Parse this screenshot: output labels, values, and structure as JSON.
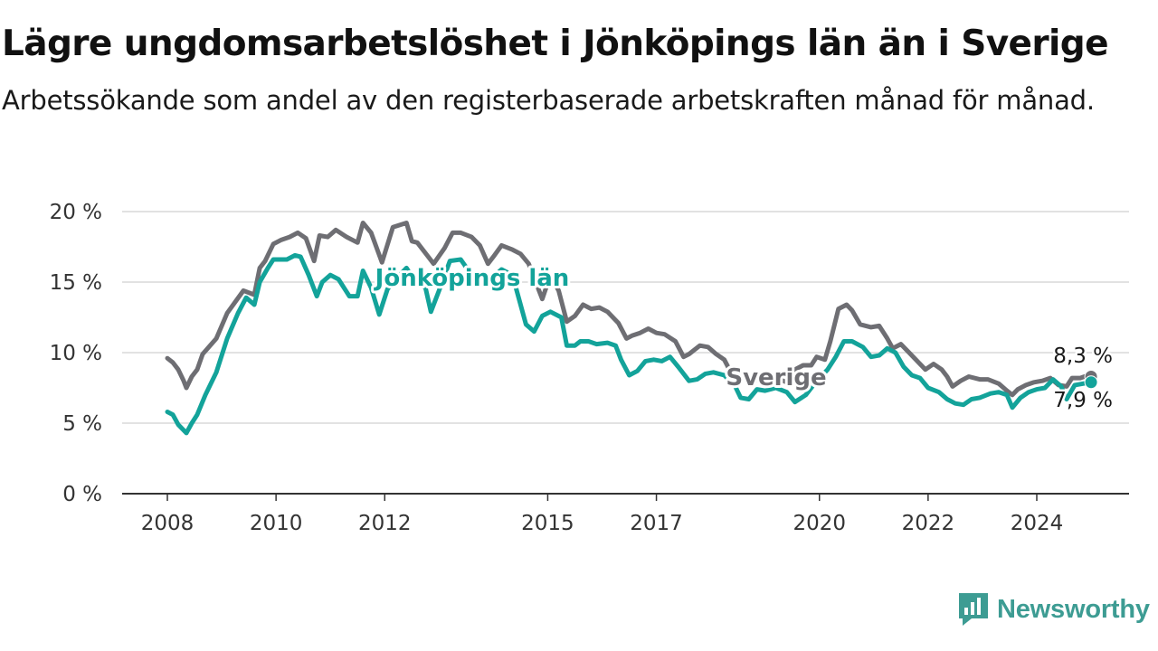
{
  "title": "Lägre ungdomsarbetslöshet i Jönköpings län än i Sverige",
  "subtitle": "Arbetssökande som andel av den registerbaserade arbetskraften månad för månad.",
  "brand": "Newsworthy",
  "colors": {
    "sverige": "#6e6e73",
    "jonkoping": "#13a39a",
    "grid": "#d9d9d9",
    "axis": "#333333",
    "brand": "#3d9c93"
  },
  "chart_data": {
    "type": "line",
    "title": "Lägre ungdomsarbetslöshet i Jönköpings län än i Sverige",
    "subtitle": "Arbetssökande som andel av den registerbaserade arbetskraften månad för månad.",
    "xlabel": "",
    "ylabel": "",
    "x_start": "2008-01",
    "x_end": "2024-09",
    "xlim": [
      2008,
      2025.25
    ],
    "ylim": [
      0,
      20
    ],
    "grid": true,
    "x_ticks": [
      {
        "value": 2008,
        "label": "2008"
      },
      {
        "value": 2010,
        "label": "2010"
      },
      {
        "value": 2012,
        "label": "2012"
      },
      {
        "value": 2015,
        "label": "2015"
      },
      {
        "value": 2017,
        "label": "2017"
      },
      {
        "value": 2020,
        "label": "2020"
      },
      {
        "value": 2022,
        "label": "2022"
      },
      {
        "value": 2024,
        "label": "2024"
      }
    ],
    "y_ticks": [
      {
        "value": 0,
        "label": "0 %"
      },
      {
        "value": 5,
        "label": "5 %"
      },
      {
        "value": 10,
        "label": "10 %"
      },
      {
        "value": 15,
        "label": "15 %"
      },
      {
        "value": 20,
        "label": "20 %"
      }
    ],
    "series": [
      {
        "name": "Sverige",
        "key": "sverige",
        "end_label": "8,3 %",
        "anchors": [
          [
            2008.0,
            9.6
          ],
          [
            2008.1,
            9.3
          ],
          [
            2008.2,
            8.8
          ],
          [
            2008.3,
            8.0
          ],
          [
            2008.35,
            7.5
          ],
          [
            2008.45,
            8.3
          ],
          [
            2008.55,
            8.8
          ],
          [
            2008.65,
            9.9
          ],
          [
            2008.9,
            11.0
          ],
          [
            2009.1,
            12.8
          ],
          [
            2009.4,
            14.4
          ],
          [
            2009.6,
            14.1
          ],
          [
            2009.7,
            16.0
          ],
          [
            2009.8,
            16.5
          ],
          [
            2009.95,
            17.7
          ],
          [
            2010.1,
            18.0
          ],
          [
            2010.25,
            18.2
          ],
          [
            2010.4,
            18.5
          ],
          [
            2010.55,
            18.1
          ],
          [
            2010.7,
            16.5
          ],
          [
            2010.8,
            18.3
          ],
          [
            2010.95,
            18.2
          ],
          [
            2011.1,
            18.7
          ],
          [
            2011.3,
            18.2
          ],
          [
            2011.5,
            17.8
          ],
          [
            2011.6,
            19.2
          ],
          [
            2011.75,
            18.5
          ],
          [
            2011.95,
            16.4
          ],
          [
            2012.15,
            18.9
          ],
          [
            2012.4,
            19.2
          ],
          [
            2012.5,
            17.9
          ],
          [
            2012.6,
            17.8
          ],
          [
            2012.8,
            16.8
          ],
          [
            2012.9,
            16.3
          ],
          [
            2013.1,
            17.4
          ],
          [
            2013.25,
            18.5
          ],
          [
            2013.4,
            18.5
          ],
          [
            2013.6,
            18.2
          ],
          [
            2013.75,
            17.6
          ],
          [
            2013.9,
            16.3
          ],
          [
            2014.0,
            16.8
          ],
          [
            2014.15,
            17.6
          ],
          [
            2014.35,
            17.3
          ],
          [
            2014.5,
            17.0
          ],
          [
            2014.65,
            16.3
          ],
          [
            2014.9,
            13.8
          ],
          [
            2015.05,
            15.5
          ],
          [
            2015.2,
            14.4
          ],
          [
            2015.35,
            12.2
          ],
          [
            2015.5,
            12.6
          ],
          [
            2015.65,
            13.4
          ],
          [
            2015.8,
            13.1
          ],
          [
            2015.95,
            13.2
          ],
          [
            2016.1,
            12.9
          ],
          [
            2016.3,
            12.1
          ],
          [
            2016.45,
            11.0
          ],
          [
            2016.55,
            11.2
          ],
          [
            2016.7,
            11.4
          ],
          [
            2016.85,
            11.7
          ],
          [
            2017.0,
            11.4
          ],
          [
            2017.15,
            11.3
          ],
          [
            2017.35,
            10.8
          ],
          [
            2017.5,
            9.7
          ],
          [
            2017.6,
            9.9
          ],
          [
            2017.8,
            10.5
          ],
          [
            2017.95,
            10.4
          ],
          [
            2018.1,
            9.9
          ],
          [
            2018.25,
            9.5
          ],
          [
            2018.45,
            8.0
          ],
          [
            2018.6,
            8.3
          ],
          [
            2018.8,
            8.1
          ],
          [
            2019.0,
            7.9
          ],
          [
            2019.2,
            8.2
          ],
          [
            2019.4,
            7.9
          ],
          [
            2019.5,
            8.7
          ],
          [
            2019.7,
            9.1
          ],
          [
            2019.85,
            9.1
          ],
          [
            2019.95,
            9.7
          ],
          [
            2020.1,
            9.5
          ],
          [
            2020.2,
            10.8
          ],
          [
            2020.35,
            13.1
          ],
          [
            2020.5,
            13.4
          ],
          [
            2020.6,
            13.0
          ],
          [
            2020.75,
            12.0
          ],
          [
            2020.95,
            11.8
          ],
          [
            2021.1,
            11.9
          ],
          [
            2021.25,
            11.0
          ],
          [
            2021.35,
            10.3
          ],
          [
            2021.5,
            10.6
          ],
          [
            2021.65,
            10.0
          ],
          [
            2021.85,
            9.2
          ],
          [
            2021.95,
            8.8
          ],
          [
            2022.1,
            9.2
          ],
          [
            2022.25,
            8.8
          ],
          [
            2022.35,
            8.3
          ],
          [
            2022.45,
            7.6
          ],
          [
            2022.6,
            8.0
          ],
          [
            2022.75,
            8.3
          ],
          [
            2022.95,
            8.1
          ],
          [
            2023.1,
            8.1
          ],
          [
            2023.3,
            7.8
          ],
          [
            2023.45,
            7.3
          ],
          [
            2023.55,
            7.0
          ],
          [
            2023.65,
            7.4
          ],
          [
            2023.8,
            7.7
          ],
          [
            2023.95,
            7.9
          ],
          [
            2024.1,
            8.0
          ],
          [
            2024.25,
            8.2
          ],
          [
            2024.4,
            7.7
          ],
          [
            2024.55,
            7.6
          ],
          [
            2024.65,
            8.2
          ],
          [
            2024.8,
            8.2
          ],
          [
            2024.95,
            8.4
          ],
          [
            2025.0,
            8.3
          ]
        ]
      },
      {
        "name": "Jönköpings län",
        "key": "jonkoping",
        "end_label": "7,9 %",
        "anchors": [
          [
            2008.0,
            5.8
          ],
          [
            2008.1,
            5.6
          ],
          [
            2008.2,
            4.9
          ],
          [
            2008.35,
            4.3
          ],
          [
            2008.45,
            5.0
          ],
          [
            2008.55,
            5.6
          ],
          [
            2008.7,
            7.0
          ],
          [
            2008.9,
            8.6
          ],
          [
            2009.1,
            11.0
          ],
          [
            2009.3,
            12.8
          ],
          [
            2009.45,
            13.9
          ],
          [
            2009.6,
            13.4
          ],
          [
            2009.7,
            15.0
          ],
          [
            2009.85,
            16.0
          ],
          [
            2009.95,
            16.6
          ],
          [
            2010.2,
            16.6
          ],
          [
            2010.35,
            16.9
          ],
          [
            2010.45,
            16.8
          ],
          [
            2010.6,
            15.5
          ],
          [
            2010.75,
            14.0
          ],
          [
            2010.85,
            15.0
          ],
          [
            2011.0,
            15.5
          ],
          [
            2011.15,
            15.2
          ],
          [
            2011.35,
            14.0
          ],
          [
            2011.5,
            14.0
          ],
          [
            2011.6,
            15.8
          ],
          [
            2011.75,
            14.6
          ],
          [
            2011.9,
            12.7
          ],
          [
            2012.05,
            14.5
          ],
          [
            2012.2,
            15.2
          ],
          [
            2012.4,
            16.0
          ],
          [
            2012.55,
            15.1
          ],
          [
            2012.75,
            14.6
          ],
          [
            2012.85,
            12.9
          ],
          [
            2013.0,
            14.4
          ],
          [
            2013.2,
            16.5
          ],
          [
            2013.4,
            16.6
          ],
          [
            2013.6,
            15.5
          ],
          [
            2013.8,
            15.0
          ],
          [
            2014.0,
            15.4
          ],
          [
            2014.15,
            15.9
          ],
          [
            2014.35,
            15.5
          ],
          [
            2014.6,
            12.0
          ],
          [
            2014.75,
            11.5
          ],
          [
            2014.9,
            12.6
          ],
          [
            2015.05,
            12.9
          ],
          [
            2015.25,
            12.5
          ],
          [
            2015.35,
            10.5
          ],
          [
            2015.5,
            10.5
          ],
          [
            2015.6,
            10.8
          ],
          [
            2015.75,
            10.8
          ],
          [
            2015.9,
            10.6
          ],
          [
            2016.1,
            10.7
          ],
          [
            2016.25,
            10.5
          ],
          [
            2016.35,
            9.5
          ],
          [
            2016.5,
            8.4
          ],
          [
            2016.65,
            8.7
          ],
          [
            2016.8,
            9.4
          ],
          [
            2016.95,
            9.5
          ],
          [
            2017.1,
            9.4
          ],
          [
            2017.25,
            9.7
          ],
          [
            2017.4,
            9.0
          ],
          [
            2017.6,
            8.0
          ],
          [
            2017.75,
            8.1
          ],
          [
            2017.9,
            8.5
          ],
          [
            2018.05,
            8.6
          ],
          [
            2018.25,
            8.4
          ],
          [
            2018.45,
            7.6
          ],
          [
            2018.55,
            6.8
          ],
          [
            2018.7,
            6.7
          ],
          [
            2018.85,
            7.4
          ],
          [
            2019.0,
            7.3
          ],
          [
            2019.2,
            7.5
          ],
          [
            2019.4,
            7.2
          ],
          [
            2019.55,
            6.5
          ],
          [
            2019.75,
            7.0
          ],
          [
            2019.95,
            8.0
          ],
          [
            2020.15,
            8.8
          ],
          [
            2020.3,
            9.7
          ],
          [
            2020.45,
            10.8
          ],
          [
            2020.6,
            10.8
          ],
          [
            2020.8,
            10.4
          ],
          [
            2020.95,
            9.7
          ],
          [
            2021.1,
            9.8
          ],
          [
            2021.25,
            10.3
          ],
          [
            2021.4,
            10.0
          ],
          [
            2021.55,
            9.0
          ],
          [
            2021.7,
            8.4
          ],
          [
            2021.85,
            8.2
          ],
          [
            2022.0,
            7.5
          ],
          [
            2022.2,
            7.2
          ],
          [
            2022.35,
            6.7
          ],
          [
            2022.5,
            6.4
          ],
          [
            2022.65,
            6.3
          ],
          [
            2022.8,
            6.7
          ],
          [
            2022.95,
            6.8
          ],
          [
            2023.15,
            7.1
          ],
          [
            2023.3,
            7.2
          ],
          [
            2023.45,
            7.0
          ],
          [
            2023.55,
            6.1
          ],
          [
            2023.7,
            6.8
          ],
          [
            2023.85,
            7.2
          ],
          [
            2024.0,
            7.4
          ],
          [
            2024.15,
            7.5
          ],
          [
            2024.3,
            8.1
          ],
          [
            2024.45,
            7.6
          ],
          [
            2024.55,
            6.7
          ],
          [
            2024.7,
            7.7
          ],
          [
            2024.85,
            7.8
          ],
          [
            2025.0,
            7.9
          ]
        ]
      }
    ]
  }
}
